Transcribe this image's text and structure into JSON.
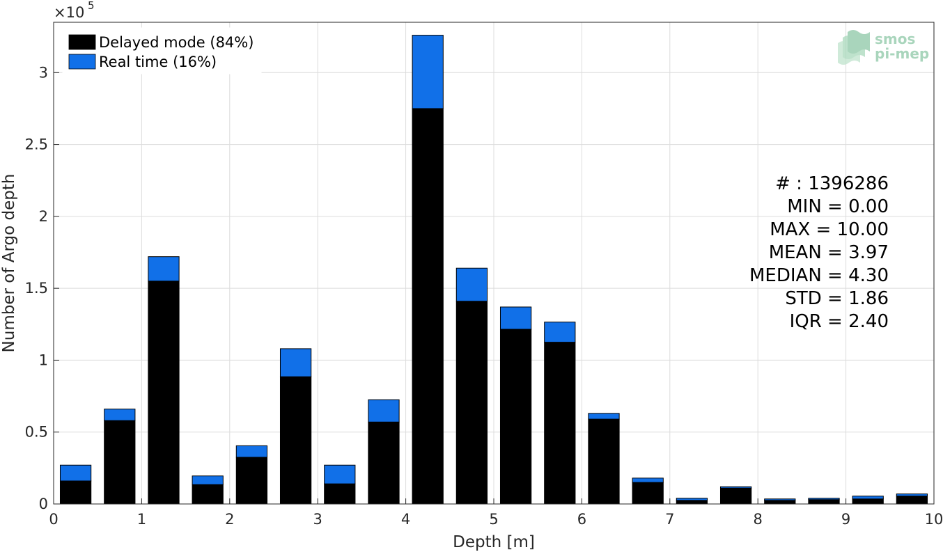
{
  "chart_data": {
    "type": "bar",
    "stacked": true,
    "x_centers": [
      0.25,
      0.75,
      1.25,
      1.75,
      2.25,
      2.75,
      3.25,
      3.75,
      4.25,
      4.75,
      5.25,
      5.75,
      6.25,
      6.75,
      7.25,
      7.75,
      8.25,
      8.75,
      9.25,
      9.75
    ],
    "series": [
      {
        "name": "Delayed mode (84%)",
        "color": "#000000",
        "values": [
          16000,
          58000,
          155000,
          13500,
          32500,
          88500,
          14000,
          57000,
          275000,
          141000,
          121500,
          112500,
          59000,
          15000,
          2500,
          11000,
          2500,
          3000,
          3500,
          5500
        ]
      },
      {
        "name": "Real time (16%)",
        "color": "#1170e8",
        "values": [
          11000,
          8000,
          17000,
          6000,
          8000,
          19500,
          13000,
          15500,
          51000,
          23000,
          15500,
          14000,
          4000,
          3000,
          1500,
          1000,
          1000,
          1000,
          2000,
          1500
        ]
      }
    ],
    "xlabel": "Depth [m]",
    "ylabel": "Number of Argo depth",
    "xlim": [
      0,
      10
    ],
    "ylim": [
      0,
      335000
    ],
    "x_ticks": [
      0,
      1,
      2,
      3,
      4,
      5,
      6,
      7,
      8,
      9,
      10
    ],
    "x_tick_labels": [
      "0",
      "1",
      "2",
      "3",
      "4",
      "5",
      "6",
      "7",
      "8",
      "9",
      "10"
    ],
    "y_ticks": [
      0,
      50000,
      100000,
      150000,
      200000,
      250000,
      300000
    ],
    "y_tick_labels": [
      "0",
      "0.5",
      "1",
      "1.5",
      "2",
      "2.5",
      "3"
    ],
    "y_exponent": {
      "base": "×10",
      "power": "5"
    },
    "grid": true,
    "legend_position": "top-left",
    "stats": [
      "# : 1396286",
      "MIN = 0.00",
      "MAX =  10.00",
      "MEAN = 3.97",
      "MEDIAN = 4.30",
      "STD = 1.86",
      "IQR = 2.40"
    ]
  },
  "watermark": {
    "line1": "smos",
    "line2": "pi-mep"
  }
}
